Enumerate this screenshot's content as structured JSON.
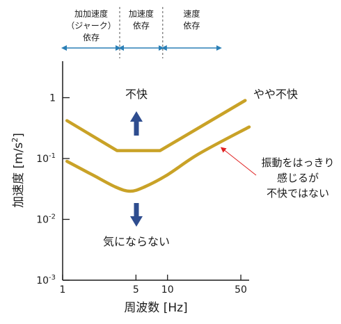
{
  "chart_data": {
    "type": "line",
    "xlabel": "周波数 [Hz]",
    "ylabel_main": "加速度 [m/s",
    "ylabel_sup": "2",
    "ylabel_close": "]",
    "x_scale": "log",
    "y_scale": "log",
    "xlim": [
      1,
      60
    ],
    "ylim": [
      0.001,
      10
    ],
    "x_ticks": [
      {
        "value": 1,
        "label": "1"
      },
      {
        "value": 5,
        "label": "5"
      },
      {
        "value": 10,
        "label": "10"
      },
      {
        "value": 50,
        "label": "50"
      }
    ],
    "y_ticks": [
      {
        "value": 1,
        "base": "1",
        "exp": ""
      },
      {
        "value": 0.1,
        "base": "10",
        "exp": "-1"
      },
      {
        "value": 0.01,
        "base": "10",
        "exp": "-2"
      },
      {
        "value": 0.001,
        "base": "10",
        "exp": "-3"
      }
    ],
    "grid": false,
    "series": [
      {
        "name": "やや不快",
        "color": "#c9a227",
        "points": [
          [
            1.1,
            0.42
          ],
          [
            3.3,
            0.135
          ],
          [
            8.5,
            0.135
          ],
          [
            55,
            0.9
          ]
        ]
      },
      {
        "name": "",
        "color": "#c9a227",
        "points": [
          [
            1.1,
            0.09
          ],
          [
            2.0,
            0.052
          ],
          [
            3.2,
            0.034
          ],
          [
            4.4,
            0.029
          ],
          [
            6.0,
            0.034
          ],
          [
            10,
            0.054
          ],
          [
            20,
            0.12
          ],
          [
            60,
            0.33
          ]
        ]
      }
    ],
    "regions": [
      {
        "from": 1,
        "to": 3.5,
        "label_lines": [
          "加加速度",
          "（ジャーク）",
          "依存"
        ]
      },
      {
        "from": 3.5,
        "to": 9,
        "label_lines": [
          "加速度",
          "依存"
        ]
      },
      {
        "from": 9,
        "to": 32,
        "label_lines": [
          "速度",
          "依存"
        ]
      }
    ],
    "annotations": {
      "discomfort": "不快",
      "slight_discomfort": "やや不快",
      "unnoticed": "気にならない",
      "middle_lines": [
        "振動をはっきり",
        "感じるが",
        "不快ではない"
      ]
    },
    "colors": {
      "curve": "#c9a227",
      "arrow": "#2e4d8f",
      "region": "#2a7fb6",
      "pointer": "#e02020",
      "axis": "#1a1a1a"
    }
  }
}
